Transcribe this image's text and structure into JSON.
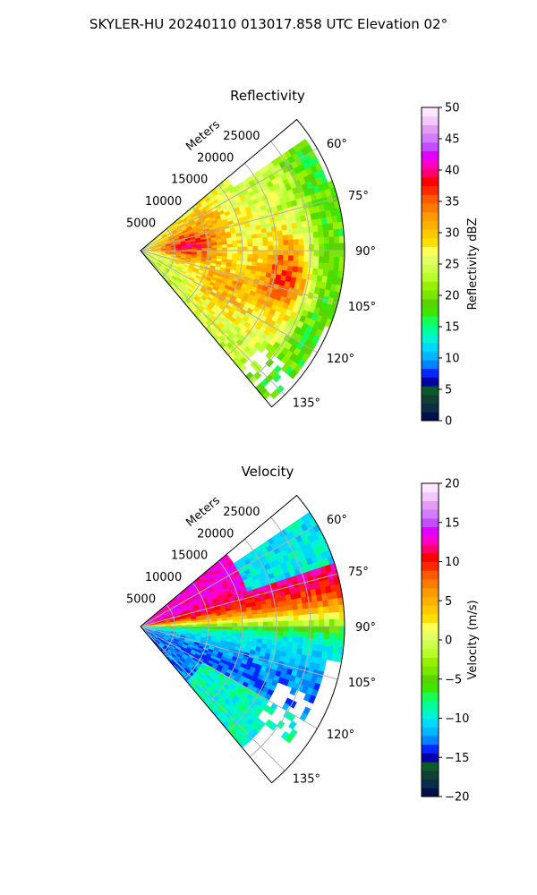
{
  "figure_title": "SKYLER-HU  20240110  013017.858 UTC Elevation 02°",
  "chart_data": [
    {
      "type": "heatmap",
      "projection": "polar-sector",
      "title": "Reflectivity",
      "radial_label": "Meters",
      "radial_ticks": [
        5000,
        10000,
        15000,
        20000,
        25000
      ],
      "radial_tick_labels": [
        "5000",
        "10000",
        "15000",
        "20000",
        "25000"
      ],
      "radial_max": 30000,
      "azimuth_range": [
        50,
        140
      ],
      "azimuth_ticks": [
        60,
        75,
        90,
        105,
        120,
        135
      ],
      "azimuth_tick_labels": [
        "60°",
        "75°",
        "90°",
        "105°",
        "120°",
        "135°"
      ],
      "grid": true,
      "colorbar": {
        "label": "Reflectivity dBZ",
        "range": [
          0,
          50
        ],
        "ticks": [
          0,
          5,
          10,
          15,
          20,
          25,
          30,
          35,
          40,
          45,
          50
        ],
        "tick_labels": [
          "0",
          "5",
          "10",
          "15",
          "20",
          "25",
          "30",
          "35",
          "40",
          "45",
          "50"
        ],
        "colors": [
          "#000f4a",
          "#0a2d4a",
          "#113f34",
          "#0c5a2a",
          "#0000a6",
          "#0027ff",
          "#0083ff",
          "#00b7ff",
          "#00d9ff",
          "#00f3d2",
          "#00ff97",
          "#17ff57",
          "#3fe600",
          "#5ad400",
          "#78e800",
          "#97f000",
          "#b6ff29",
          "#cfff4d",
          "#e3ff66",
          "#ffff55",
          "#ffe000",
          "#ffc800",
          "#ffb000",
          "#ff9a00",
          "#ff7a00",
          "#ff5a00",
          "#ff2a00",
          "#ff0000",
          "#ff0070",
          "#ff00c8",
          "#e100ff",
          "#c44dff",
          "#d27cff",
          "#e39cf0",
          "#f3c8ff",
          "#ffe8ff"
        ]
      }
    },
    {
      "type": "heatmap",
      "projection": "polar-sector",
      "title": "Velocity",
      "radial_label": "Meters",
      "radial_ticks": [
        5000,
        10000,
        15000,
        20000,
        25000
      ],
      "radial_tick_labels": [
        "5000",
        "10000",
        "15000",
        "20000",
        "25000"
      ],
      "radial_max": 30000,
      "azimuth_range": [
        50,
        140
      ],
      "azimuth_ticks": [
        60,
        75,
        90,
        105,
        120,
        135
      ],
      "azimuth_tick_labels": [
        "60°",
        "75°",
        "90°",
        "105°",
        "120°",
        "135°"
      ],
      "grid": true,
      "colorbar": {
        "label": "Velocity (m/s)",
        "range": [
          -20,
          20
        ],
        "ticks": [
          -20,
          -15,
          -10,
          -5,
          0,
          5,
          10,
          15,
          20
        ],
        "tick_labels": [
          "−20",
          "−15",
          "−10",
          "−5",
          "0",
          "5",
          "10",
          "15",
          "20"
        ],
        "colors": [
          "#000f4a",
          "#0a2d4a",
          "#113f34",
          "#0c5a2a",
          "#0000a6",
          "#0027ff",
          "#0083ff",
          "#00b7ff",
          "#00d9ff",
          "#00f3d2",
          "#00ff97",
          "#17ff57",
          "#3fe600",
          "#5ad400",
          "#78e800",
          "#97f000",
          "#b6ff29",
          "#cfff4d",
          "#e3ff66",
          "#ffff55",
          "#ffe000",
          "#ffc800",
          "#ffb000",
          "#ff9a00",
          "#ff7a00",
          "#ff5a00",
          "#ff2a00",
          "#ff0000",
          "#ff0070",
          "#ff00c8",
          "#e100ff",
          "#c44dff",
          "#d27cff",
          "#e39cf0",
          "#f3c8ff",
          "#ffe8ff"
        ]
      }
    }
  ]
}
